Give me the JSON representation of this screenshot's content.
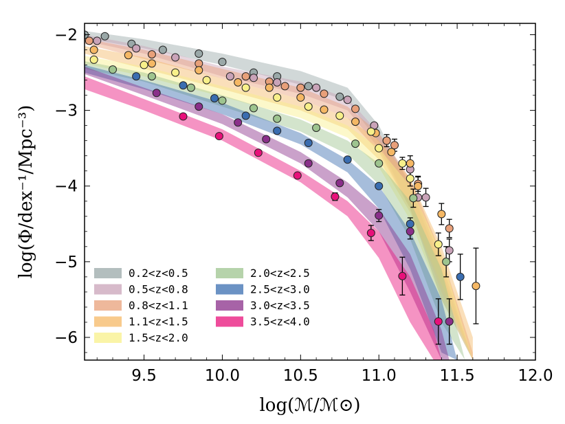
{
  "chart_data": {
    "type": "scatter",
    "title": "",
    "xlabel": "log(ℳ/ℳ⊙)",
    "ylabel": "log(Φ/dex⁻¹/Mpc⁻³)",
    "xlim": [
      9.12,
      12.0
    ],
    "ylim": [
      -6.3,
      -1.85
    ],
    "xticks": [
      9.5,
      10.0,
      10.5,
      11.0,
      11.5,
      12.0
    ],
    "xtick_labels": [
      "9.5",
      "10.0",
      "10.5",
      "11.0",
      "11.5",
      "12.0"
    ],
    "yticks": [
      -2,
      -3,
      -4,
      -5,
      -6
    ],
    "ytick_labels": [
      "−2",
      "−3",
      "−4",
      "−5",
      "−6"
    ],
    "grid": false,
    "legend_position": "bottom-left",
    "series": [
      {
        "name": "0.2<z<0.5",
        "color": "#9aa8a8",
        "points": [
          [
            9.12,
            -2.0
          ],
          [
            9.25,
            -2.02
          ],
          [
            9.42,
            -2.12
          ],
          [
            9.62,
            -2.2
          ],
          [
            9.85,
            -2.25
          ],
          [
            10.0,
            -2.36
          ],
          [
            10.2,
            -2.5
          ],
          [
            10.35,
            -2.55
          ],
          [
            10.55,
            -2.68
          ],
          [
            10.75,
            -2.82
          ]
        ],
        "errors": [],
        "band": [
          [
            9.12,
            -1.95,
            -2.05
          ],
          [
            9.5,
            -2.06,
            -2.18
          ],
          [
            10.0,
            -2.25,
            -2.4
          ],
          [
            10.5,
            -2.48,
            -2.66
          ],
          [
            10.8,
            -2.7,
            -2.88
          ],
          [
            11.0,
            -3.2,
            -3.42
          ],
          [
            11.2,
            -4.0,
            -4.3
          ],
          [
            11.4,
            -5.1,
            -5.5
          ],
          [
            11.6,
            -6.3,
            -6.3
          ]
        ]
      },
      {
        "name": "0.5<z<0.8",
        "color": "#c9a3b8",
        "points": [
          [
            9.1,
            -2.0
          ],
          [
            9.2,
            -2.08
          ],
          [
            9.45,
            -2.18
          ],
          [
            9.7,
            -2.3
          ],
          [
            10.05,
            -2.55
          ],
          [
            10.2,
            -2.57
          ],
          [
            10.35,
            -2.63
          ],
          [
            10.6,
            -2.7
          ],
          [
            10.8,
            -2.86
          ],
          [
            10.97,
            -3.2
          ],
          [
            11.05,
            -3.4
          ],
          [
            11.2,
            -3.78
          ],
          [
            11.25,
            -4.15
          ],
          [
            11.3,
            -4.15
          ],
          [
            11.45,
            -4.85
          ]
        ],
        "errors": [
          [
            11.2,
            0.1
          ],
          [
            11.3,
            0.12
          ],
          [
            11.45,
            0.15
          ]
        ],
        "band": [
          [
            9.12,
            -2.0,
            -2.08
          ],
          [
            9.5,
            -2.15,
            -2.25
          ],
          [
            10.0,
            -2.42,
            -2.55
          ],
          [
            10.5,
            -2.62,
            -2.78
          ],
          [
            10.8,
            -2.84,
            -3.0
          ],
          [
            11.0,
            -3.3,
            -3.5
          ],
          [
            11.2,
            -3.95,
            -4.3
          ],
          [
            11.4,
            -5.0,
            -5.5
          ],
          [
            11.6,
            -6.3,
            -6.3
          ]
        ]
      },
      {
        "name": "0.8<z<1.1",
        "color": "#e8a07a",
        "points": [
          [
            9.15,
            -2.08
          ],
          [
            9.55,
            -2.26
          ],
          [
            9.85,
            -2.38
          ],
          [
            10.15,
            -2.55
          ],
          [
            10.3,
            -2.62
          ],
          [
            10.4,
            -2.68
          ],
          [
            10.5,
            -2.7
          ],
          [
            10.65,
            -2.78
          ],
          [
            10.85,
            -2.98
          ],
          [
            11.05,
            -3.4
          ],
          [
            11.1,
            -3.46
          ],
          [
            11.25,
            -3.97
          ],
          [
            11.45,
            -4.56
          ]
        ],
        "errors": [
          [
            11.05,
            0.08
          ],
          [
            11.1,
            0.08
          ],
          [
            11.25,
            0.1
          ],
          [
            11.45,
            0.12
          ]
        ],
        "band": [
          [
            9.12,
            -2.05,
            -2.12
          ],
          [
            9.5,
            -2.2,
            -2.32
          ],
          [
            10.0,
            -2.45,
            -2.58
          ],
          [
            10.5,
            -2.7,
            -2.85
          ],
          [
            10.8,
            -2.95,
            -3.1
          ],
          [
            11.0,
            -3.3,
            -3.55
          ],
          [
            11.2,
            -3.9,
            -4.3
          ],
          [
            11.4,
            -4.9,
            -5.4
          ],
          [
            11.6,
            -6.2,
            -6.3
          ]
        ]
      },
      {
        "name": "1.1<z<1.5",
        "color": "#f5b865",
        "points": [
          [
            9.18,
            -2.2
          ],
          [
            9.4,
            -2.27
          ],
          [
            9.55,
            -2.38
          ],
          [
            9.85,
            -2.47
          ],
          [
            10.1,
            -2.63
          ],
          [
            10.3,
            -2.7
          ],
          [
            10.5,
            -2.83
          ],
          [
            10.65,
            -2.99
          ],
          [
            10.85,
            -3.15
          ],
          [
            10.98,
            -3.3
          ],
          [
            11.08,
            -3.55
          ],
          [
            11.2,
            -3.7
          ],
          [
            11.25,
            -4.0
          ],
          [
            11.4,
            -4.37
          ],
          [
            11.62,
            -5.32
          ]
        ],
        "errors": [
          [
            11.2,
            0.1
          ],
          [
            11.25,
            0.12
          ],
          [
            11.4,
            0.14
          ],
          [
            11.62,
            0.5
          ]
        ],
        "band": [
          [
            9.12,
            -2.15,
            -2.25
          ],
          [
            9.5,
            -2.3,
            -2.45
          ],
          [
            10.0,
            -2.58,
            -2.72
          ],
          [
            10.5,
            -2.85,
            -3.0
          ],
          [
            10.8,
            -3.1,
            -3.25
          ],
          [
            11.0,
            -3.4,
            -3.65
          ],
          [
            11.2,
            -3.9,
            -4.35
          ],
          [
            11.4,
            -4.8,
            -5.3
          ],
          [
            11.6,
            -6.0,
            -6.3
          ]
        ]
      },
      {
        "name": "1.5<z<2.0",
        "color": "#f8f08a",
        "points": [
          [
            9.18,
            -2.33
          ],
          [
            9.5,
            -2.4
          ],
          [
            9.7,
            -2.5
          ],
          [
            9.9,
            -2.6
          ],
          [
            10.15,
            -2.7
          ],
          [
            10.35,
            -2.83
          ],
          [
            10.55,
            -2.95
          ],
          [
            10.75,
            -3.07
          ],
          [
            10.95,
            -3.28
          ],
          [
            11.0,
            -3.5
          ],
          [
            11.15,
            -3.7
          ],
          [
            11.2,
            -3.9
          ],
          [
            11.38,
            -4.77
          ]
        ],
        "errors": [
          [
            11.15,
            0.08
          ],
          [
            11.2,
            0.1
          ],
          [
            11.38,
            0.15
          ]
        ],
        "band": [
          [
            9.12,
            -2.28,
            -2.38
          ],
          [
            9.5,
            -2.42,
            -2.55
          ],
          [
            10.0,
            -2.68,
            -2.82
          ],
          [
            10.5,
            -2.95,
            -3.1
          ],
          [
            10.8,
            -3.2,
            -3.36
          ],
          [
            11.0,
            -3.5,
            -3.75
          ],
          [
            11.2,
            -4.0,
            -4.45
          ],
          [
            11.4,
            -4.9,
            -5.5
          ],
          [
            11.6,
            -6.3,
            -6.3
          ]
        ]
      },
      {
        "name": "2.0<z<2.5",
        "color": "#9ec48f",
        "points": [
          [
            9.3,
            -2.46
          ],
          [
            9.55,
            -2.55
          ],
          [
            9.8,
            -2.7
          ],
          [
            10.0,
            -2.87
          ],
          [
            10.2,
            -2.97
          ],
          [
            10.35,
            -3.11
          ],
          [
            10.6,
            -3.23
          ],
          [
            10.85,
            -3.44
          ],
          [
            11.0,
            -3.7
          ],
          [
            11.22,
            -4.16
          ],
          [
            11.43,
            -5.0
          ]
        ],
        "errors": [
          [
            11.22,
            0.12
          ],
          [
            11.43,
            0.2
          ]
        ],
        "band": [
          [
            9.12,
            -2.35,
            -2.45
          ],
          [
            9.5,
            -2.5,
            -2.62
          ],
          [
            10.0,
            -2.8,
            -2.95
          ],
          [
            10.5,
            -3.12,
            -3.28
          ],
          [
            10.8,
            -3.4,
            -3.58
          ],
          [
            11.0,
            -3.7,
            -3.98
          ],
          [
            11.2,
            -4.2,
            -4.7
          ],
          [
            11.4,
            -5.1,
            -5.8
          ],
          [
            11.55,
            -6.3,
            -6.3
          ]
        ]
      },
      {
        "name": "2.5<z<3.0",
        "color": "#3a6db0",
        "points": [
          [
            9.45,
            -2.55
          ],
          [
            9.75,
            -2.67
          ],
          [
            9.95,
            -2.84
          ],
          [
            10.15,
            -3.07
          ],
          [
            10.35,
            -3.27
          ],
          [
            10.55,
            -3.43
          ],
          [
            10.8,
            -3.65
          ],
          [
            11.0,
            -4.0
          ],
          [
            11.2,
            -4.5
          ],
          [
            11.52,
            -5.2
          ]
        ],
        "errors": [
          [
            11.2,
            0.08
          ],
          [
            11.52,
            0.3
          ]
        ],
        "band": [
          [
            9.12,
            -2.4,
            -2.5
          ],
          [
            9.5,
            -2.6,
            -2.72
          ],
          [
            10.0,
            -2.9,
            -3.05
          ],
          [
            10.5,
            -3.3,
            -3.45
          ],
          [
            10.8,
            -3.65,
            -3.82
          ],
          [
            11.0,
            -4.0,
            -4.3
          ],
          [
            11.2,
            -4.6,
            -5.1
          ],
          [
            11.4,
            -5.5,
            -6.2
          ],
          [
            11.5,
            -6.3,
            -6.3
          ]
        ]
      },
      {
        "name": "3.0<z<3.5",
        "color": "#8a2f8a",
        "points": [
          [
            9.58,
            -2.77
          ],
          [
            9.85,
            -2.95
          ],
          [
            10.1,
            -3.16
          ],
          [
            10.28,
            -3.38
          ],
          [
            10.55,
            -3.7
          ],
          [
            10.75,
            -3.96
          ],
          [
            11.0,
            -4.39
          ],
          [
            11.2,
            -4.6
          ],
          [
            11.45,
            -5.79
          ]
        ],
        "errors": [
          [
            11.0,
            0.08
          ],
          [
            11.2,
            0.1
          ],
          [
            11.45,
            0.3
          ]
        ],
        "band": [
          [
            9.12,
            -2.42,
            -2.52
          ],
          [
            9.5,
            -2.7,
            -2.8
          ],
          [
            10.0,
            -3.05,
            -3.18
          ],
          [
            10.5,
            -3.55,
            -3.7
          ],
          [
            10.8,
            -3.95,
            -4.15
          ],
          [
            11.0,
            -4.3,
            -4.6
          ],
          [
            11.2,
            -4.9,
            -5.4
          ],
          [
            11.4,
            -5.9,
            -6.3
          ],
          [
            11.45,
            -6.3,
            -6.3
          ]
        ]
      },
      {
        "name": "3.5<z<4.0",
        "color": "#e8107a",
        "points": [
          [
            9.75,
            -3.08
          ],
          [
            9.98,
            -3.34
          ],
          [
            10.23,
            -3.56
          ],
          [
            10.48,
            -3.86
          ],
          [
            10.72,
            -4.14
          ],
          [
            10.95,
            -4.62
          ],
          [
            11.15,
            -5.19
          ],
          [
            11.38,
            -5.79
          ]
        ],
        "errors": [
          [
            10.72,
            0.05
          ],
          [
            10.95,
            0.1
          ],
          [
            11.15,
            0.25
          ],
          [
            11.38,
            0.3
          ]
        ],
        "band": [
          [
            9.12,
            -2.55,
            -2.72
          ],
          [
            9.5,
            -2.85,
            -3.0
          ],
          [
            10.0,
            -3.25,
            -3.4
          ],
          [
            10.5,
            -3.8,
            -3.95
          ],
          [
            10.8,
            -4.2,
            -4.4
          ],
          [
            11.0,
            -4.6,
            -4.95
          ],
          [
            11.2,
            -5.2,
            -5.8
          ],
          [
            11.35,
            -5.9,
            -6.3
          ],
          [
            11.4,
            -6.3,
            -6.3
          ]
        ]
      }
    ]
  }
}
